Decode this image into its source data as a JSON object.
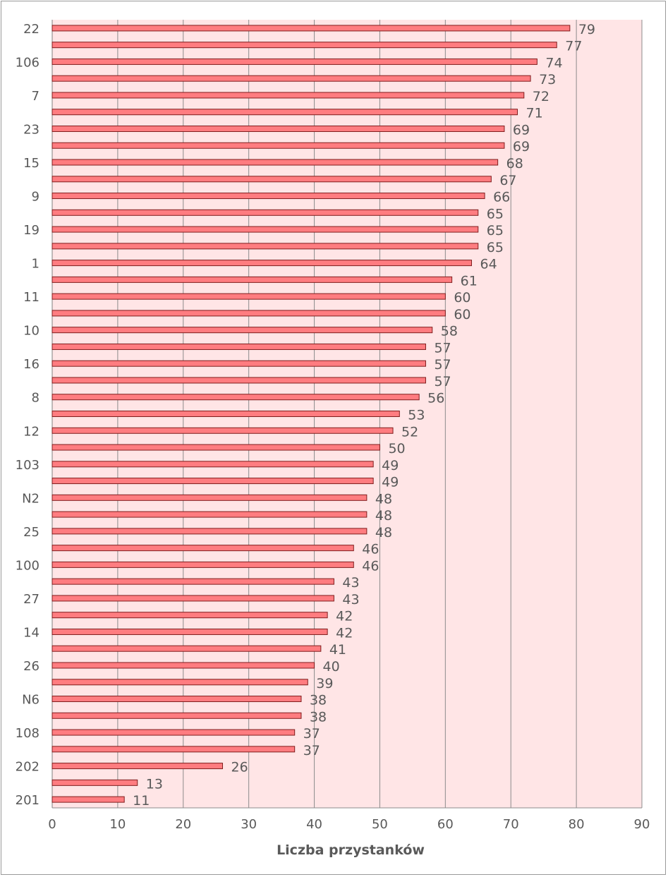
{
  "chart_data": {
    "type": "bar",
    "orientation": "horizontal",
    "title": "",
    "xlabel": "Liczba przystanków",
    "ylabel": "",
    "xlim": [
      0,
      90
    ],
    "x_ticks": [
      0,
      10,
      20,
      30,
      40,
      50,
      60,
      70,
      80,
      90
    ],
    "grid": "vertical",
    "legend": "none",
    "colors": {
      "bar_fill": "#ff7c80",
      "bar_stroke": "#7f1d1d",
      "plot_background": "#ffe5e6",
      "gridline": "#8c8c8c",
      "text": "#595959"
    },
    "categories": [
      "22",
      "",
      "106",
      "",
      "7",
      "",
      "23",
      "",
      "15",
      "",
      "9",
      "",
      "19",
      "",
      "1",
      "",
      "11",
      "",
      "10",
      "",
      "16",
      "",
      "8",
      "",
      "12",
      "",
      "103",
      "",
      "N2",
      "",
      "25",
      "",
      "100",
      "",
      "27",
      "",
      "14",
      "",
      "26",
      "",
      "N6",
      "",
      "108",
      "",
      "202",
      "",
      "201"
    ],
    "values": [
      79,
      77,
      74,
      73,
      72,
      71,
      69,
      69,
      68,
      67,
      66,
      65,
      65,
      65,
      64,
      61,
      60,
      60,
      58,
      57,
      57,
      57,
      56,
      53,
      52,
      50,
      49,
      49,
      48,
      48,
      48,
      46,
      46,
      43,
      43,
      42,
      42,
      41,
      40,
      39,
      38,
      38,
      37,
      37,
      26,
      13,
      11
    ]
  }
}
